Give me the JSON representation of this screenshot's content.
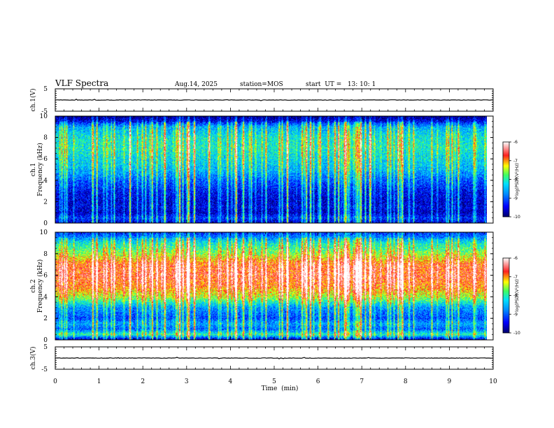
{
  "header": {
    "title": "VLF Spectra",
    "date": "Aug.14, 2025",
    "station": "station=MOS",
    "start": "start  UT =   13: 10: 1"
  },
  "colors": {
    "cmap": [
      "#00006a",
      "#0000ff",
      "#0088ff",
      "#00e0ff",
      "#40ff60",
      "#ffff00",
      "#ff2020",
      "#ffffff"
    ],
    "black": "#000000"
  },
  "chart_data": [
    {
      "type": "line",
      "name": "ch1-waveform",
      "ylabel": "ch.1(V)",
      "ylim": [
        -5,
        5
      ],
      "y_ticks": [
        "5",
        "-5"
      ],
      "baseline": 0,
      "xlim": [
        0,
        10
      ]
    },
    {
      "type": "heatmap",
      "name": "ch1-spectrogram",
      "ylabel": "ch.1\nFrequency (kHz)",
      "ylabel_lines": [
        "ch.1",
        "Frequency (kHz)"
      ],
      "ylim": [
        0,
        10
      ],
      "y_ticks": [
        "0",
        "2",
        "4",
        "6",
        "8",
        "10"
      ],
      "xlim": [
        0,
        9.85
      ],
      "band_profile": [
        {
          "f": 0.0,
          "level": -9.6
        },
        {
          "f": 0.5,
          "level": -9.2
        },
        {
          "f": 1.0,
          "level": -9.7
        },
        {
          "f": 1.5,
          "level": -9.5
        },
        {
          "f": 2.0,
          "level": -9.6
        },
        {
          "f": 3.0,
          "level": -9.4
        },
        {
          "f": 4.0,
          "level": -9.0
        },
        {
          "f": 5.0,
          "level": -8.5
        },
        {
          "f": 6.0,
          "level": -8.3
        },
        {
          "f": 7.0,
          "level": -8.1
        },
        {
          "f": 8.0,
          "level": -8.2
        },
        {
          "f": 9.0,
          "level": -8.6
        },
        {
          "f": 9.5,
          "level": -9.5
        },
        {
          "f": 10.0,
          "level": -10.0
        }
      ],
      "colorbar": {
        "label": "log(PSD)(V²/Hz)",
        "ticks": [
          "-6",
          "-7",
          "-8",
          "-9",
          "-10"
        ],
        "range": [
          -10,
          -6
        ]
      }
    },
    {
      "type": "heatmap",
      "name": "ch2-spectrogram",
      "ylabel": "ch.2\nFrequency (kHz)",
      "ylabel_lines": [
        "ch.2",
        "Frequency (kHz)"
      ],
      "ylim": [
        0,
        10
      ],
      "y_ticks": [
        "0",
        "2",
        "4",
        "6",
        "8",
        "10"
      ],
      "xlim": [
        0,
        9.85
      ],
      "band_profile": [
        {
          "f": 0.0,
          "level": -9.8
        },
        {
          "f": 0.5,
          "level": -8.0
        },
        {
          "f": 1.0,
          "level": -9.0
        },
        {
          "f": 1.5,
          "level": -8.6
        },
        {
          "f": 2.0,
          "level": -9.1
        },
        {
          "f": 3.0,
          "level": -8.7
        },
        {
          "f": 4.0,
          "level": -7.5
        },
        {
          "f": 5.0,
          "level": -6.9
        },
        {
          "f": 6.0,
          "level": -6.7
        },
        {
          "f": 7.0,
          "level": -6.8
        },
        {
          "f": 8.0,
          "level": -7.6
        },
        {
          "f": 9.0,
          "level": -8.2
        },
        {
          "f": 9.5,
          "level": -8.8
        },
        {
          "f": 10.0,
          "level": -9.3
        }
      ],
      "colorbar": {
        "label": "log(PSD)(V²/Hz)",
        "ticks": [
          "-6",
          "-7",
          "-8",
          "-9",
          "-10"
        ],
        "range": [
          -10,
          -6
        ]
      }
    },
    {
      "type": "line",
      "name": "ch3-waveform",
      "ylabel": "ch.3(V)",
      "ylim": [
        -5,
        5
      ],
      "y_ticks": [
        "5",
        "-5"
      ],
      "baseline": 0,
      "xlim": [
        0,
        10
      ]
    }
  ],
  "x_axis": {
    "label": "Time  (min)",
    "range": [
      0,
      10
    ],
    "ticks": [
      "0",
      "1",
      "2",
      "3",
      "4",
      "5",
      "6",
      "7",
      "8",
      "9",
      "10"
    ]
  }
}
